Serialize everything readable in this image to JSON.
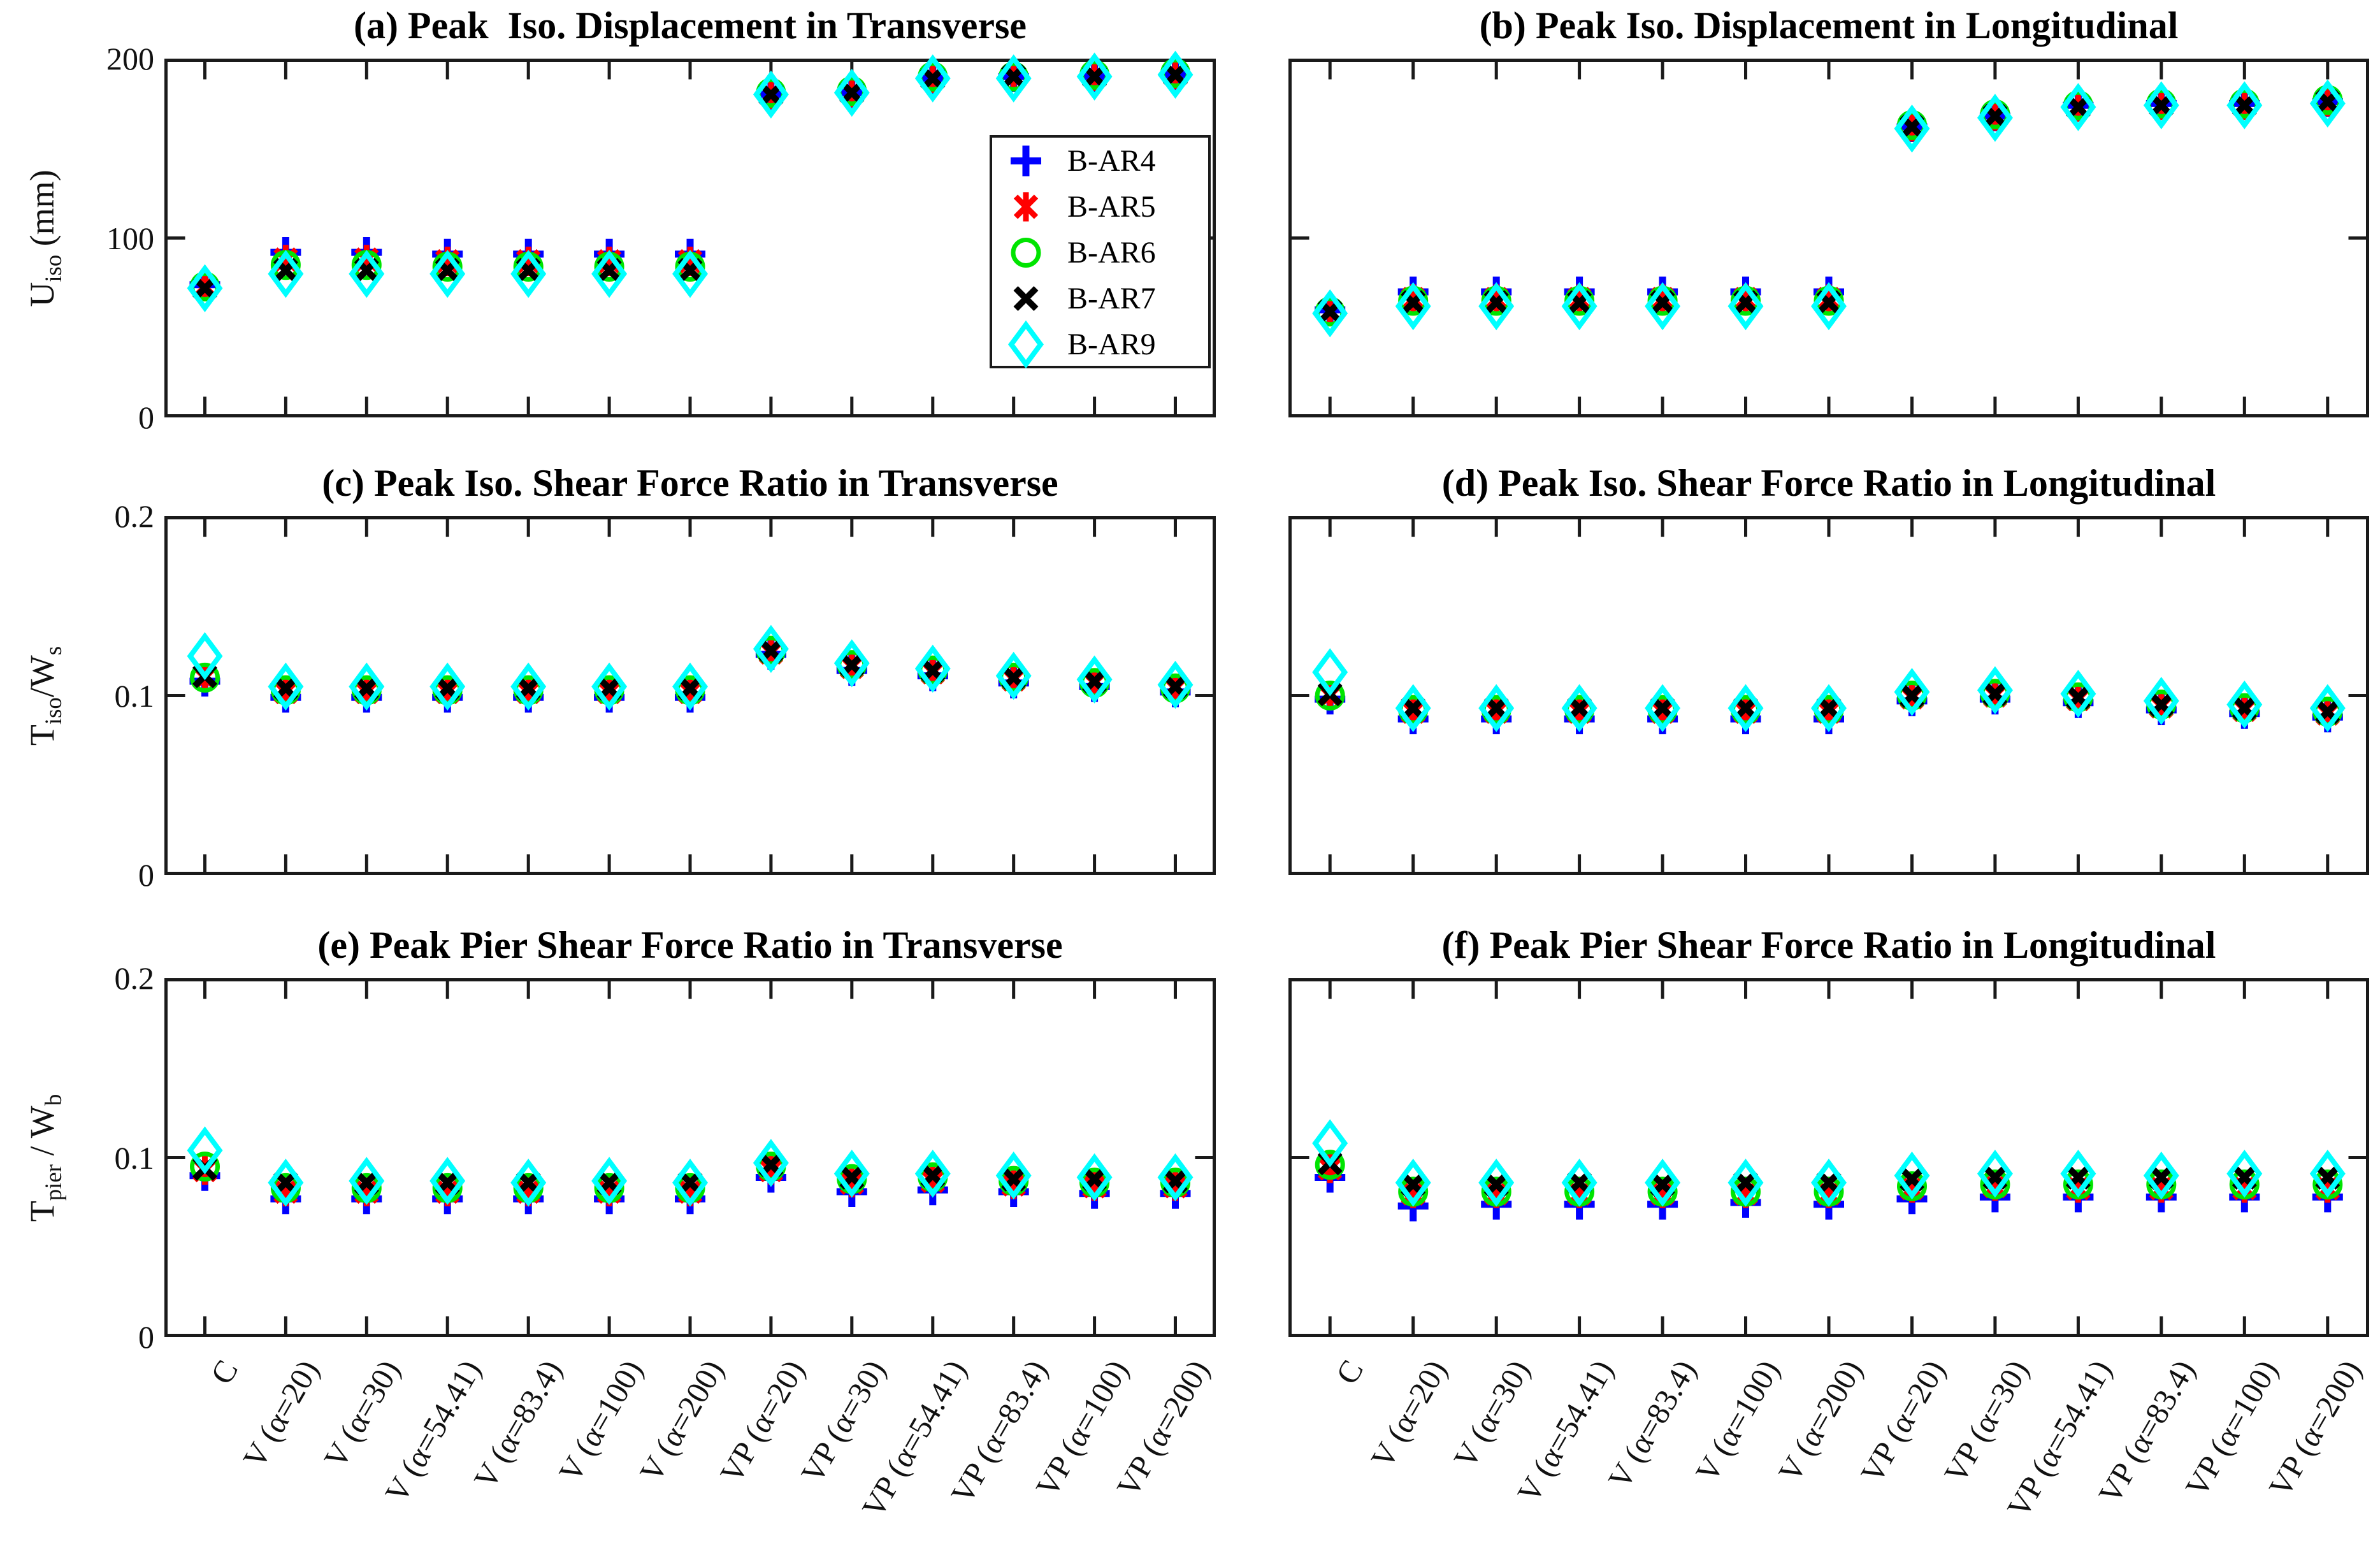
{
  "figure": {
    "background": "#ffffff",
    "axis_color": "#1a1a1a"
  },
  "categories": [
    "C",
    "V (α=20)",
    "V (α=30)",
    "V (α=54.41)",
    "V (α=83.4)",
    "V (α=100)",
    "V (α=200)",
    "VP (α=20)",
    "VP (α=30)",
    "VP (α=54.41)",
    "VP (α=83.4)",
    "VP (α=100)",
    "VP (α=200)"
  ],
  "legend": {
    "position": "inside-subplot-a-right-middle",
    "entries": [
      {
        "label": "B-AR4",
        "marker": "plus-marker",
        "color": "#0000ff"
      },
      {
        "label": "B-AR5",
        "marker": "asterisk-marker",
        "color": "#ff0000"
      },
      {
        "label": "B-AR6",
        "marker": "circle-marker",
        "color": "#00e400"
      },
      {
        "label": "B-AR7",
        "marker": "x-marker",
        "color": "#000000"
      },
      {
        "label": "B-AR9",
        "marker": "diamond-marker",
        "color": "#00ffff"
      }
    ]
  },
  "chart_data": [
    {
      "id": "a",
      "type": "scatter",
      "title": "(a) Peak  Iso. Displacement in Transverse",
      "ylabel_parts": [
        {
          "text": "U"
        },
        {
          "sub": "iso"
        },
        {
          "text": " (mm)"
        }
      ],
      "ylim": [
        0,
        200
      ],
      "yticks": [
        0,
        100,
        200
      ],
      "ytick_labels": [
        "0",
        "100",
        "200"
      ],
      "show_ytick_labels": true,
      "grid": false,
      "has_legend": true,
      "series": [
        {
          "name": "B-AR4",
          "values": [
            74,
            92,
            92,
            91,
            91,
            91,
            91,
            180,
            181,
            189,
            190,
            190,
            191
          ]
        },
        {
          "name": "B-AR5",
          "values": [
            73,
            88,
            88,
            87,
            87,
            87,
            87,
            180,
            181,
            189,
            190,
            190,
            191
          ]
        },
        {
          "name": "B-AR6",
          "values": [
            73,
            85,
            85,
            84,
            84,
            84,
            84,
            181,
            182,
            190,
            190,
            191,
            192
          ]
        },
        {
          "name": "B-AR7",
          "values": [
            72,
            82,
            82,
            82,
            82,
            82,
            82,
            180,
            181,
            189,
            190,
            190,
            191
          ]
        },
        {
          "name": "B-AR9",
          "values": [
            72,
            80,
            80,
            80,
            80,
            80,
            80,
            180,
            181,
            189,
            189,
            190,
            191
          ]
        }
      ]
    },
    {
      "id": "b",
      "type": "scatter",
      "title": "(b) Peak Iso. Displacement in Longitudinal",
      "ylabel_parts": null,
      "ylim": [
        0,
        200
      ],
      "yticks": [
        0,
        100,
        200
      ],
      "ytick_labels": [
        "0",
        "100",
        "200"
      ],
      "show_ytick_labels": false,
      "grid": false,
      "has_legend": false,
      "series": [
        {
          "name": "B-AR4",
          "values": [
            60,
            70,
            70,
            70,
            70,
            70,
            70,
            162,
            168,
            174,
            175,
            175,
            176
          ]
        },
        {
          "name": "B-AR5",
          "values": [
            59,
            66,
            66,
            66,
            66,
            66,
            66,
            162,
            168,
            173,
            174,
            174,
            176
          ]
        },
        {
          "name": "B-AR6",
          "values": [
            59,
            65,
            65,
            65,
            65,
            65,
            65,
            163,
            169,
            174,
            175,
            175,
            177
          ]
        },
        {
          "name": "B-AR7",
          "values": [
            59,
            64,
            64,
            64,
            64,
            64,
            64,
            162,
            168,
            173,
            174,
            174,
            176
          ]
        },
        {
          "name": "B-AR9",
          "values": [
            58,
            62,
            62,
            62,
            62,
            62,
            62,
            161,
            167,
            173,
            174,
            174,
            175
          ]
        }
      ]
    },
    {
      "id": "c",
      "type": "scatter",
      "title": "(c) Peak Iso. Shear Force Ratio in Transverse",
      "ylabel_parts": [
        {
          "text": "T"
        },
        {
          "sub": "iso"
        },
        {
          "text": "/W"
        },
        {
          "sub": "s"
        }
      ],
      "ylim": [
        0,
        0.2
      ],
      "yticks": [
        0,
        0.1,
        0.2
      ],
      "ytick_labels": [
        "0",
        "0.1",
        "0.2"
      ],
      "show_ytick_labels": true,
      "grid": false,
      "has_legend": false,
      "series": [
        {
          "name": "B-AR4",
          "values": [
            0.108,
            0.099,
            0.099,
            0.099,
            0.099,
            0.099,
            0.099,
            0.123,
            0.114,
            0.111,
            0.107,
            0.105,
            0.102
          ]
        },
        {
          "name": "B-AR5",
          "values": [
            0.11,
            0.102,
            0.102,
            0.102,
            0.102,
            0.102,
            0.102,
            0.124,
            0.116,
            0.113,
            0.109,
            0.107,
            0.104
          ]
        },
        {
          "name": "B-AR6",
          "values": [
            0.11,
            0.103,
            0.103,
            0.103,
            0.103,
            0.103,
            0.103,
            0.125,
            0.117,
            0.114,
            0.11,
            0.107,
            0.104
          ]
        },
        {
          "name": "B-AR7",
          "values": [
            0.111,
            0.104,
            0.104,
            0.104,
            0.104,
            0.104,
            0.104,
            0.125,
            0.117,
            0.114,
            0.11,
            0.108,
            0.105
          ]
        },
        {
          "name": "B-AR9",
          "values": [
            0.122,
            0.105,
            0.105,
            0.105,
            0.105,
            0.105,
            0.105,
            0.126,
            0.118,
            0.115,
            0.111,
            0.109,
            0.106
          ]
        }
      ]
    },
    {
      "id": "d",
      "type": "scatter",
      "title": "(d) Peak Iso. Shear Force Ratio in Longitudinal",
      "ylabel_parts": null,
      "ylim": [
        0,
        0.2
      ],
      "yticks": [
        0,
        0.1,
        0.2
      ],
      "ytick_labels": [
        "0",
        "0.1",
        "0.2"
      ],
      "show_ytick_labels": false,
      "grid": false,
      "has_legend": false,
      "series": [
        {
          "name": "B-AR4",
          "values": [
            0.098,
            0.087,
            0.087,
            0.087,
            0.087,
            0.087,
            0.087,
            0.097,
            0.098,
            0.096,
            0.092,
            0.09,
            0.088
          ]
        },
        {
          "name": "B-AR5",
          "values": [
            0.1,
            0.091,
            0.091,
            0.091,
            0.091,
            0.091,
            0.091,
            0.099,
            0.1,
            0.098,
            0.094,
            0.092,
            0.09
          ]
        },
        {
          "name": "B-AR6",
          "values": [
            0.1,
            0.092,
            0.092,
            0.092,
            0.092,
            0.092,
            0.092,
            0.1,
            0.101,
            0.099,
            0.095,
            0.093,
            0.091
          ]
        },
        {
          "name": "B-AR7",
          "values": [
            0.101,
            0.093,
            0.093,
            0.093,
            0.093,
            0.093,
            0.093,
            0.1,
            0.101,
            0.099,
            0.095,
            0.093,
            0.091
          ]
        },
        {
          "name": "B-AR9",
          "values": [
            0.113,
            0.093,
            0.093,
            0.093,
            0.093,
            0.093,
            0.093,
            0.102,
            0.103,
            0.101,
            0.097,
            0.095,
            0.093
          ]
        }
      ]
    },
    {
      "id": "e",
      "type": "scatter",
      "title": "(e) Peak Pier Shear Force Ratio in Transverse",
      "ylabel_parts": [
        {
          "text": "T"
        },
        {
          "sub": "pier"
        },
        {
          "text": " / W"
        },
        {
          "sub": "b"
        }
      ],
      "ylim": [
        0,
        0.2
      ],
      "yticks": [
        0,
        0.1,
        0.2
      ],
      "ytick_labels": [
        "0",
        "0.1",
        "0.2"
      ],
      "show_ytick_labels": true,
      "grid": false,
      "has_legend": false,
      "show_xtick_labels": true,
      "series": [
        {
          "name": "B-AR4",
          "values": [
            0.09,
            0.077,
            0.077,
            0.077,
            0.077,
            0.077,
            0.077,
            0.089,
            0.081,
            0.082,
            0.081,
            0.08,
            0.08
          ]
        },
        {
          "name": "B-AR5",
          "values": [
            0.093,
            0.081,
            0.081,
            0.081,
            0.081,
            0.081,
            0.081,
            0.093,
            0.086,
            0.087,
            0.085,
            0.084,
            0.084
          ]
        },
        {
          "name": "B-AR6",
          "values": [
            0.095,
            0.083,
            0.083,
            0.083,
            0.083,
            0.083,
            0.083,
            0.095,
            0.088,
            0.089,
            0.087,
            0.086,
            0.086
          ]
        },
        {
          "name": "B-AR7",
          "values": [
            0.094,
            0.086,
            0.086,
            0.086,
            0.086,
            0.086,
            0.086,
            0.096,
            0.089,
            0.09,
            0.088,
            0.088,
            0.087
          ]
        },
        {
          "name": "B-AR9",
          "values": [
            0.104,
            0.086,
            0.087,
            0.087,
            0.086,
            0.087,
            0.086,
            0.097,
            0.091,
            0.091,
            0.09,
            0.089,
            0.089
          ]
        }
      ]
    },
    {
      "id": "f",
      "type": "scatter",
      "title": "(f) Peak Pier Shear Force Ratio in Longitudinal",
      "ylabel_parts": null,
      "ylim": [
        0,
        0.2
      ],
      "yticks": [
        0,
        0.1,
        0.2
      ],
      "ytick_labels": [
        "0",
        "0.1",
        "0.2"
      ],
      "show_ytick_labels": false,
      "grid": false,
      "has_legend": false,
      "show_xtick_labels": true,
      "series": [
        {
          "name": "B-AR4",
          "values": [
            0.089,
            0.073,
            0.074,
            0.074,
            0.074,
            0.075,
            0.074,
            0.077,
            0.078,
            0.078,
            0.078,
            0.078,
            0.078
          ]
        },
        {
          "name": "B-AR5",
          "values": [
            0.094,
            0.08,
            0.08,
            0.08,
            0.08,
            0.08,
            0.08,
            0.083,
            0.084,
            0.083,
            0.083,
            0.083,
            0.083
          ]
        },
        {
          "name": "B-AR6",
          "values": [
            0.096,
            0.081,
            0.081,
            0.081,
            0.081,
            0.081,
            0.081,
            0.084,
            0.085,
            0.085,
            0.085,
            0.085,
            0.085
          ]
        },
        {
          "name": "B-AR7",
          "values": [
            0.097,
            0.085,
            0.085,
            0.086,
            0.085,
            0.086,
            0.086,
            0.088,
            0.089,
            0.089,
            0.089,
            0.089,
            0.089
          ]
        },
        {
          "name": "B-AR9",
          "values": [
            0.108,
            0.086,
            0.086,
            0.086,
            0.086,
            0.086,
            0.086,
            0.09,
            0.091,
            0.091,
            0.09,
            0.091,
            0.091
          ]
        }
      ]
    }
  ]
}
